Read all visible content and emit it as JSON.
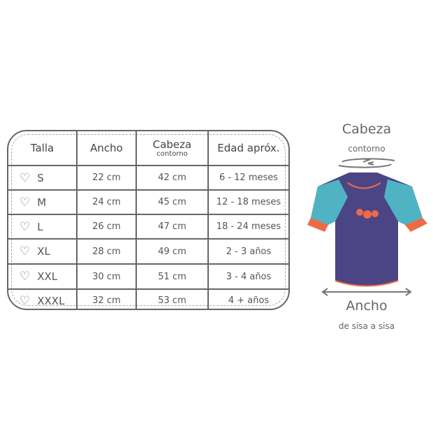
{
  "table": {
    "headers": {
      "talla": "Talla",
      "ancho": "Ancho",
      "cabeza": "Cabeza",
      "cabeza_sub": "contorno",
      "edad": "Edad apróx."
    },
    "rows": [
      {
        "talla": "S",
        "ancho": "22 cm",
        "cabeza": "42 cm",
        "edad": "6 - 12 meses"
      },
      {
        "talla": "M",
        "ancho": "24 cm",
        "cabeza": "45 cm",
        "edad": "12 - 18 meses"
      },
      {
        "talla": "L",
        "ancho": "26 cm",
        "cabeza": "47 cm",
        "edad": "18 - 24 meses"
      },
      {
        "talla": "XL",
        "ancho": "28 cm",
        "cabeza": "49 cm",
        "edad": "2 - 3 años"
      },
      {
        "talla": "XXL",
        "ancho": "30 cm",
        "cabeza": "51 cm",
        "edad": "3 - 4 años"
      },
      {
        "talla": "XXXL",
        "ancho": "32 cm",
        "cabeza": "53 cm",
        "edad": "4 + años"
      }
    ],
    "row_icon": "heart-outline-icon"
  },
  "diagram": {
    "cabeza": "Cabeza",
    "cabeza_sub": "contorno",
    "ancho": "Ancho",
    "ancho_sub": "de sisa a sisa",
    "colors": {
      "body": "#4b4585",
      "sleeve": "#4fb3c4",
      "trim": "#ee6a47",
      "arrow": "#777777"
    }
  }
}
